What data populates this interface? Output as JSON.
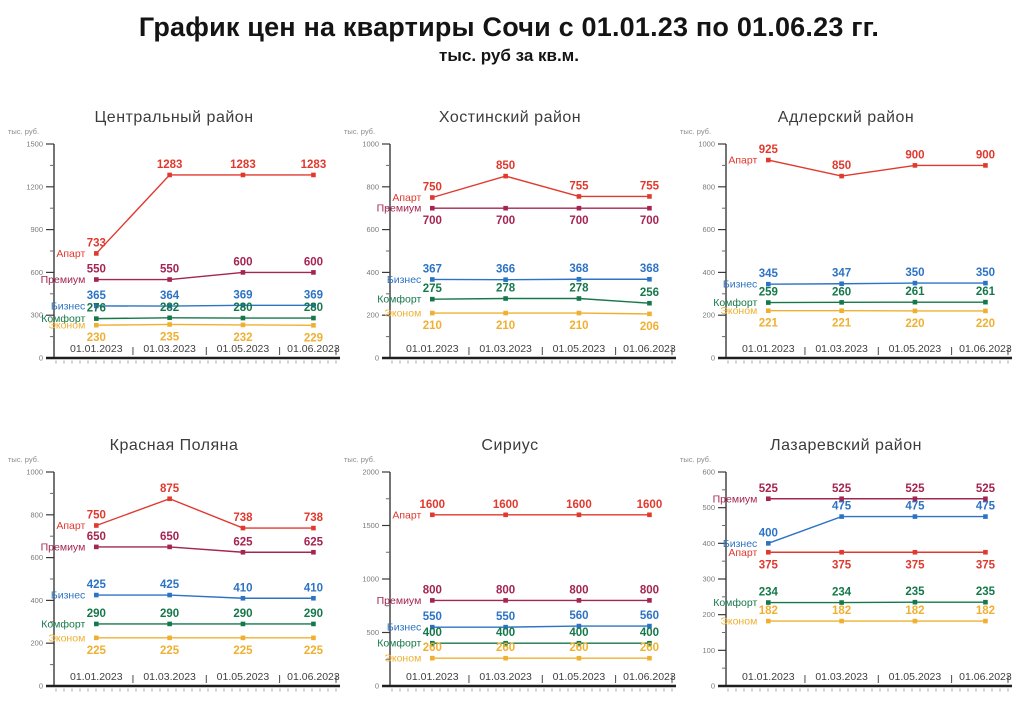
{
  "page": {
    "title": "График цен на квартиры Сочи с 01.01.23 по 01.06.23 гг.",
    "subtitle": "тыс. руб за кв.м."
  },
  "chart_data": [
    {
      "type": "line",
      "title": "Центральный район",
      "ylabel": "тыс. руб.",
      "ylim": [
        0,
        1500
      ],
      "ytick_step": 300,
      "grid": false,
      "value_labels": true,
      "categories": [
        "01.01.2023",
        "01.03.2023",
        "01.05.2023",
        "01.06.2023"
      ],
      "series": [
        {
          "key": "apart",
          "name": "Апарт",
          "color": "#e0392e",
          "values": [
            733,
            1283,
            1283,
            1283
          ],
          "label_side": "above"
        },
        {
          "key": "premium",
          "name": "Премиум",
          "color": "#a42452",
          "values": [
            550,
            550,
            600,
            600
          ],
          "label_side": "above"
        },
        {
          "key": "business",
          "name": "Бизнес",
          "color": "#2d73c5",
          "values": [
            365,
            364,
            369,
            369
          ],
          "label_side": "above"
        },
        {
          "key": "comfort",
          "name": "Комфорт",
          "color": "#15784a",
          "values": [
            276,
            282,
            280,
            280
          ],
          "label_side": "above"
        },
        {
          "key": "econom",
          "name": "Эконом",
          "color": "#efb032",
          "values": [
            230,
            235,
            232,
            229
          ],
          "label_side": "below"
        }
      ]
    },
    {
      "type": "line",
      "title": "Хостинский район",
      "ylabel": "тыс. руб.",
      "ylim": [
        0,
        1000
      ],
      "ytick_step": 200,
      "grid": false,
      "value_labels": true,
      "categories": [
        "01.01.2023",
        "01.03.2023",
        "01.05.2023",
        "01.06.2023"
      ],
      "series": [
        {
          "key": "apart",
          "name": "Апарт",
          "color": "#e0392e",
          "values": [
            750,
            850,
            755,
            755
          ],
          "label_side": "above"
        },
        {
          "key": "premium",
          "name": "Премиум",
          "color": "#a42452",
          "values": [
            700,
            700,
            700,
            700
          ],
          "label_side": "below"
        },
        {
          "key": "business",
          "name": "Бизнес",
          "color": "#2d73c5",
          "values": [
            367,
            366,
            368,
            368
          ],
          "label_side": "above"
        },
        {
          "key": "comfort",
          "name": "Комфорт",
          "color": "#15784a",
          "values": [
            275,
            278,
            278,
            256
          ],
          "label_side": "above"
        },
        {
          "key": "econom",
          "name": "Эконом",
          "color": "#efb032",
          "values": [
            210,
            210,
            210,
            206
          ],
          "label_side": "below"
        }
      ]
    },
    {
      "type": "line",
      "title": "Адлерский район",
      "ylabel": "тыс. руб.",
      "ylim": [
        0,
        1000
      ],
      "ytick_step": 200,
      "grid": false,
      "value_labels": true,
      "categories": [
        "01.01.2023",
        "01.03.2023",
        "01.05.2023",
        "01.06.2023"
      ],
      "series": [
        {
          "key": "apart",
          "name": "Апарт",
          "color": "#e0392e",
          "values": [
            925,
            850,
            900,
            900
          ],
          "label_side": "above"
        },
        {
          "key": "business",
          "name": "Бизнес",
          "color": "#2d73c5",
          "values": [
            345,
            347,
            350,
            350
          ],
          "label_side": "above"
        },
        {
          "key": "comfort",
          "name": "Комфорт",
          "color": "#15784a",
          "values": [
            259,
            260,
            261,
            261
          ],
          "label_side": "above"
        },
        {
          "key": "econom",
          "name": "Эконом",
          "color": "#efb032",
          "values": [
            221,
            221,
            220,
            220
          ],
          "label_side": "below"
        }
      ]
    },
    {
      "type": "line",
      "title": "Красная Поляна",
      "ylabel": "тыс. руб.",
      "ylim": [
        0,
        1000
      ],
      "ytick_step": 200,
      "grid": false,
      "value_labels": true,
      "categories": [
        "01.01.2023",
        "01.03.2023",
        "01.05.2023",
        "01.06.2023"
      ],
      "series": [
        {
          "key": "apart",
          "name": "Апарт",
          "color": "#e0392e",
          "values": [
            750,
            875,
            738,
            738
          ],
          "label_side": "above"
        },
        {
          "key": "premium",
          "name": "Премиум",
          "color": "#a42452",
          "values": [
            650,
            650,
            625,
            625
          ],
          "label_side": "above"
        },
        {
          "key": "business",
          "name": "Бизнес",
          "color": "#2d73c5",
          "values": [
            425,
            425,
            410,
            410
          ],
          "label_side": "above"
        },
        {
          "key": "comfort",
          "name": "Комфорт",
          "color": "#15784a",
          "values": [
            290,
            290,
            290,
            290
          ],
          "label_side": "above"
        },
        {
          "key": "econom",
          "name": "Эконом",
          "color": "#efb032",
          "values": [
            225,
            225,
            225,
            225
          ],
          "label_side": "below"
        }
      ]
    },
    {
      "type": "line",
      "title": "Сириус",
      "ylabel": "тыс. руб.",
      "ylim": [
        0,
        2000
      ],
      "ytick_step": 500,
      "grid": false,
      "value_labels": true,
      "categories": [
        "01.01.2023",
        "01.03.2023",
        "01.05.2023",
        "01.06.2023"
      ],
      "series": [
        {
          "key": "apart",
          "name": "Апарт",
          "color": "#e0392e",
          "values": [
            1600,
            1600,
            1600,
            1600
          ],
          "label_side": "above"
        },
        {
          "key": "premium",
          "name": "Премиум",
          "color": "#a42452",
          "values": [
            800,
            800,
            800,
            800
          ],
          "label_side": "above"
        },
        {
          "key": "business",
          "name": "Бизнес",
          "color": "#2d73c5",
          "values": [
            550,
            550,
            560,
            560
          ],
          "label_side": "above"
        },
        {
          "key": "comfort",
          "name": "Комфорт",
          "color": "#15784a",
          "values": [
            400,
            400,
            400,
            400
          ],
          "label_side": "above"
        },
        {
          "key": "econom",
          "name": "Эконом",
          "color": "#efb032",
          "values": [
            260,
            260,
            260,
            260
          ],
          "label_side": "above"
        }
      ]
    },
    {
      "type": "line",
      "title": "Лазаревский район",
      "ylabel": "тыс. руб.",
      "ylim": [
        0,
        600
      ],
      "ytick_step": 100,
      "grid": false,
      "value_labels": true,
      "categories": [
        "01.01.2023",
        "01.03.2023",
        "01.05.2023",
        "01.06.2023"
      ],
      "series": [
        {
          "key": "premium",
          "name": "Премиум",
          "color": "#a42452",
          "values": [
            525,
            525,
            525,
            525
          ],
          "label_side": "above"
        },
        {
          "key": "business",
          "name": "Бизнес",
          "color": "#2d73c5",
          "values": [
            400,
            475,
            475,
            475
          ],
          "label_side": "above"
        },
        {
          "key": "apart",
          "name": "Апарт",
          "color": "#e0392e",
          "values": [
            375,
            375,
            375,
            375
          ],
          "label_side": "below"
        },
        {
          "key": "comfort",
          "name": "Комфорт",
          "color": "#15784a",
          "values": [
            234,
            234,
            235,
            235
          ],
          "label_side": "above"
        },
        {
          "key": "econom",
          "name": "Эконом",
          "color": "#efb032",
          "values": [
            182,
            182,
            182,
            182
          ],
          "label_side": "above"
        }
      ]
    }
  ]
}
